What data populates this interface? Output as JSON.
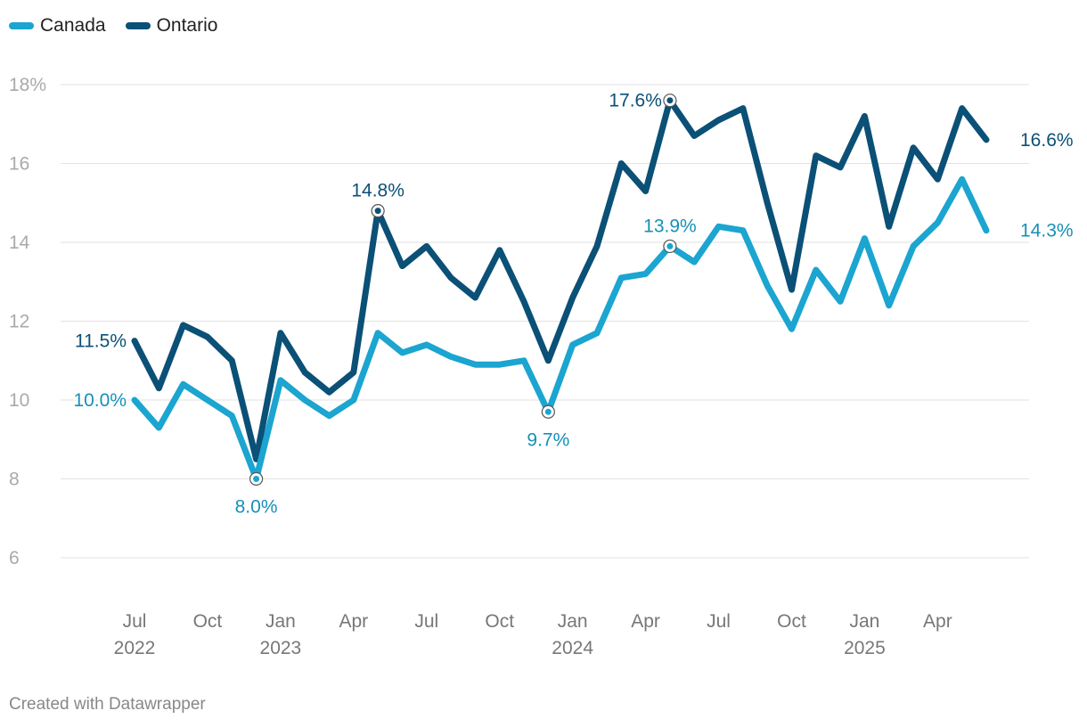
{
  "chart_data": {
    "type": "line",
    "title": "",
    "xlabel": "",
    "ylabel": "",
    "ylim": [
      6,
      18
    ],
    "yticks": [
      6,
      8,
      10,
      12,
      14,
      16,
      18
    ],
    "ytick_labels": [
      "6",
      "8",
      "10",
      "12",
      "14",
      "16",
      "18%"
    ],
    "x": [
      "2022-07",
      "2022-08",
      "2022-09",
      "2022-10",
      "2022-11",
      "2022-12",
      "2023-01",
      "2023-02",
      "2023-03",
      "2023-04",
      "2023-05",
      "2023-06",
      "2023-07",
      "2023-08",
      "2023-09",
      "2023-10",
      "2023-11",
      "2023-12",
      "2024-01",
      "2024-02",
      "2024-03",
      "2024-04",
      "2024-05",
      "2024-06",
      "2024-07",
      "2024-08",
      "2024-09",
      "2024-10",
      "2024-11",
      "2024-12",
      "2025-01",
      "2025-02",
      "2025-03",
      "2025-04",
      "2025-05",
      "2025-06"
    ],
    "xticks": [
      {
        "index": 0,
        "line1": "Jul",
        "line2": "2022"
      },
      {
        "index": 3,
        "line1": "Oct",
        "line2": ""
      },
      {
        "index": 6,
        "line1": "Jan",
        "line2": "2023"
      },
      {
        "index": 9,
        "line1": "Apr",
        "line2": ""
      },
      {
        "index": 12,
        "line1": "Jul",
        "line2": ""
      },
      {
        "index": 15,
        "line1": "Oct",
        "line2": ""
      },
      {
        "index": 18,
        "line1": "Jan",
        "line2": "2024"
      },
      {
        "index": 21,
        "line1": "Apr",
        "line2": ""
      },
      {
        "index": 24,
        "line1": "Jul",
        "line2": ""
      },
      {
        "index": 27,
        "line1": "Oct",
        "line2": ""
      },
      {
        "index": 30,
        "line1": "Jan",
        "line2": "2025"
      },
      {
        "index": 33,
        "line1": "Apr",
        "line2": ""
      }
    ],
    "series": [
      {
        "name": "Ontario",
        "color": "#0b5076",
        "label_color": "#0b5076",
        "values": [
          11.5,
          10.3,
          11.9,
          11.6,
          11.0,
          8.5,
          11.7,
          10.7,
          10.2,
          10.7,
          14.8,
          13.4,
          13.9,
          13.1,
          12.6,
          13.8,
          12.5,
          11.0,
          12.6,
          13.9,
          16.0,
          15.3,
          17.6,
          16.7,
          17.1,
          17.4,
          15.0,
          12.8,
          16.2,
          15.9,
          17.2,
          14.4,
          16.4,
          15.6,
          17.4,
          16.6
        ]
      },
      {
        "name": "Canada",
        "color": "#1ba5d0",
        "label_color": "#1690b8",
        "values": [
          10.0,
          9.3,
          10.4,
          10.0,
          9.6,
          8.0,
          10.5,
          10.0,
          9.6,
          10.0,
          11.7,
          11.2,
          11.4,
          11.1,
          10.9,
          10.9,
          11.0,
          9.7,
          11.4,
          11.7,
          13.1,
          13.2,
          13.9,
          13.5,
          14.4,
          14.3,
          12.9,
          11.8,
          13.3,
          12.5,
          14.1,
          12.4,
          13.9,
          14.5,
          15.6,
          14.3
        ]
      }
    ],
    "annotations": [
      {
        "series": "Ontario",
        "index": 0,
        "text": "11.5%",
        "position": "left",
        "marker": false
      },
      {
        "series": "Ontario",
        "index": 10,
        "text": "14.8%",
        "position": "above",
        "marker": true
      },
      {
        "series": "Ontario",
        "index": 22,
        "text": "17.6%",
        "position": "left",
        "marker": true
      },
      {
        "series": "Ontario",
        "index": 35,
        "text": "16.6%",
        "position": "right",
        "marker": false
      },
      {
        "series": "Canada",
        "index": 0,
        "text": "10.0%",
        "position": "left",
        "marker": false
      },
      {
        "series": "Canada",
        "index": 5,
        "text": "8.0%",
        "position": "below",
        "marker": true
      },
      {
        "series": "Canada",
        "index": 17,
        "text": "9.7%",
        "position": "below",
        "marker": true
      },
      {
        "series": "Canada",
        "index": 22,
        "text": "13.9%",
        "position": "above",
        "marker": true
      },
      {
        "series": "Canada",
        "index": 35,
        "text": "14.3%",
        "position": "right",
        "marker": false
      }
    ],
    "legend": {
      "placement": "top-left",
      "order": [
        "Canada",
        "Ontario"
      ]
    },
    "grid": true
  },
  "legend": {
    "canada_label": "Canada",
    "canada_color": "#1ba5d0",
    "ontario_label": "Ontario",
    "ontario_color": "#0b5076"
  },
  "footer": {
    "credit": "Created with Datawrapper"
  }
}
